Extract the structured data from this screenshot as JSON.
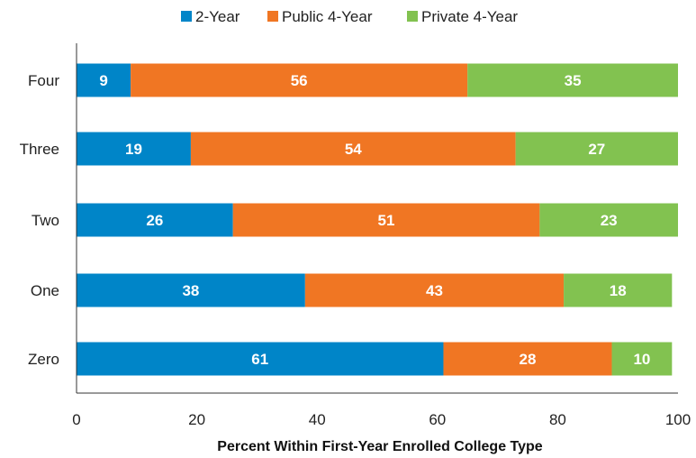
{
  "chart_data": {
    "type": "bar",
    "orientation": "horizontal",
    "stacked": true,
    "categories": [
      "Four",
      "Three",
      "Two",
      "One",
      "Zero"
    ],
    "series": [
      {
        "name": "2-Year",
        "color": "#0085c8",
        "values": [
          9,
          19,
          26,
          38,
          61
        ]
      },
      {
        "name": "Public 4-Year",
        "color": "#f07623",
        "values": [
          56,
          54,
          51,
          43,
          28
        ]
      },
      {
        "name": "Private 4-Year",
        "color": "#82c250",
        "values": [
          35,
          27,
          23,
          18,
          10
        ]
      }
    ],
    "title": "",
    "xlabel": "Percent Within First-Year Enrolled College Type",
    "ylabel": "",
    "xlim": [
      0,
      100
    ],
    "xticks": [
      0,
      20,
      40,
      60,
      80,
      100
    ],
    "legend_position": "top-center",
    "grid": false
  }
}
